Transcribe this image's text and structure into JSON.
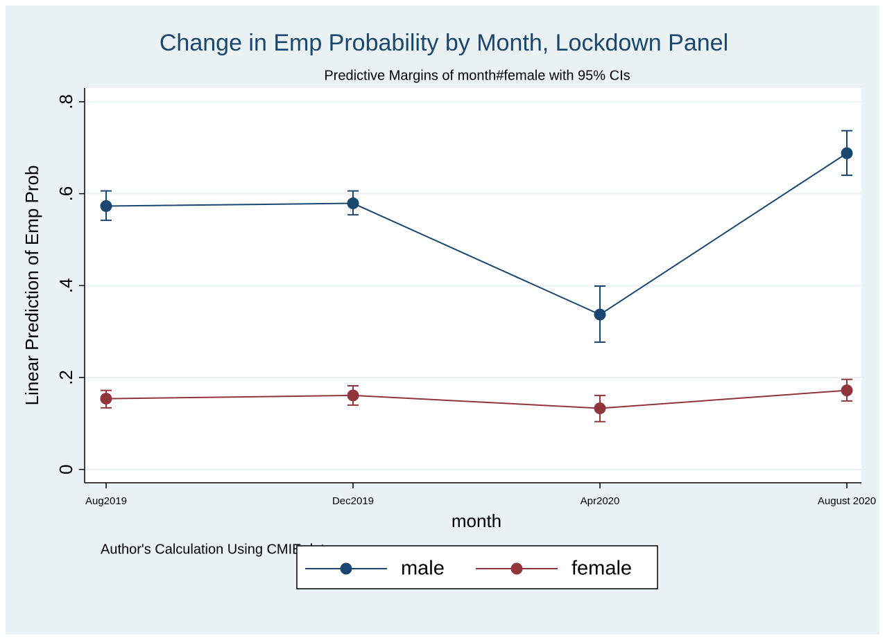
{
  "chart_data": {
    "type": "line",
    "title": "Change in Emp Probability by Month, Lockdown Panel",
    "subtitle": "Predictive Margins of month#female with 95% CIs",
    "y_label": "Linear Prediction of Emp Prob",
    "x_label": "month",
    "note": "Author's Calculation Using CMIE data",
    "categories": [
      "Aug2019",
      "Dec2019",
      "Apr2020",
      "August 2020"
    ],
    "series": [
      {
        "name": "male",
        "color": "#1a476f",
        "values": [
          0.573,
          0.579,
          0.337,
          0.688
        ],
        "lower": [
          0.542,
          0.554,
          0.277,
          0.64
        ],
        "upper": [
          0.606,
          0.606,
          0.399,
          0.737
        ]
      },
      {
        "name": "female",
        "color": "#90353b",
        "values": [
          0.154,
          0.161,
          0.133,
          0.172
        ],
        "lower": [
          0.134,
          0.14,
          0.104,
          0.149
        ],
        "upper": [
          0.172,
          0.182,
          0.161,
          0.196
        ]
      }
    ],
    "ylim": [
      -0.029,
      0.83
    ],
    "yticks": [
      0,
      {
        "value": 0.2,
        "label": ".2"
      },
      {
        "value": 0.4,
        "label": ".4"
      },
      {
        "value": 0.6,
        "label": ".6"
      },
      {
        "value": 0.8,
        "label": ".8"
      }
    ],
    "grid": true
  }
}
